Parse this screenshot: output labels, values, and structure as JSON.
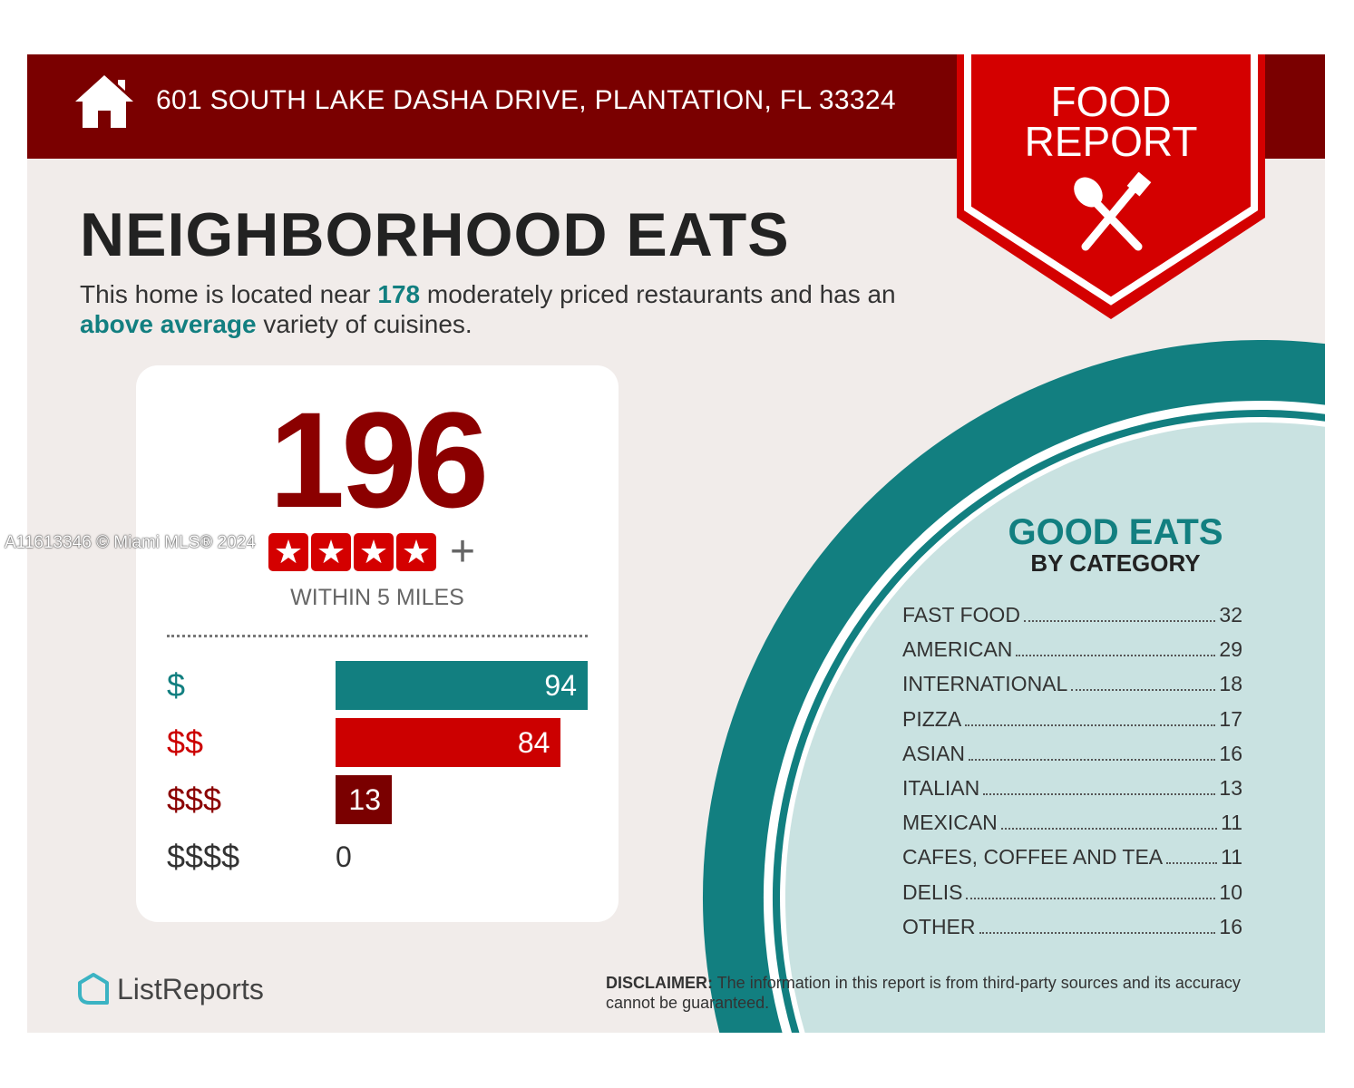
{
  "header": {
    "address": "601 SOUTH LAKE DASHA DRIVE, PLANTATION, FL 33324",
    "badge_line1": "FOOD",
    "badge_line2": "REPORT"
  },
  "title": "NEIGHBORHOOD EATS",
  "description": {
    "p1": "This home is located near ",
    "count": "178",
    "p2": " moderately priced restaurants and has an ",
    "variety": "above average",
    "p3": " variety of cuisines."
  },
  "summary": {
    "total": "196",
    "rating_stars": 4,
    "plus": "+",
    "within": "WITHIN 5 MILES"
  },
  "price_bars": [
    {
      "label": "$",
      "value": 94,
      "color": "#127f80",
      "label_color": "#127f80"
    },
    {
      "label": "$$",
      "value": 84,
      "color": "#cc0000",
      "label_color": "#cc0000"
    },
    {
      "label": "$$$",
      "value": 13,
      "color": "#7a0000",
      "label_color": "#8b0000"
    },
    {
      "label": "$$$$",
      "value": 0,
      "color": "#333333",
      "label_color": "#333333"
    }
  ],
  "categories": {
    "title": "GOOD EATS",
    "subtitle": "BY CATEGORY",
    "items": [
      {
        "name": "FAST FOOD",
        "count": "32"
      },
      {
        "name": "AMERICAN",
        "count": "29"
      },
      {
        "name": "INTERNATIONAL",
        "count": "18"
      },
      {
        "name": "PIZZA",
        "count": "17"
      },
      {
        "name": "ASIAN",
        "count": "16"
      },
      {
        "name": "ITALIAN",
        "count": "13"
      },
      {
        "name": "MEXICAN",
        "count": "11"
      },
      {
        "name": "CAFES, COFFEE AND TEA",
        "count": "11"
      },
      {
        "name": "DELIS",
        "count": "10"
      },
      {
        "name": "OTHER",
        "count": "16"
      }
    ]
  },
  "footer": {
    "logo": "ListReports",
    "disclaimer_label": "DISCLAIMER:",
    "disclaimer_text": " The information in this report is from third-party sources and its accuracy cannot be guaranteed."
  },
  "watermark": "A11613346 © Miami MLS® 2024"
}
